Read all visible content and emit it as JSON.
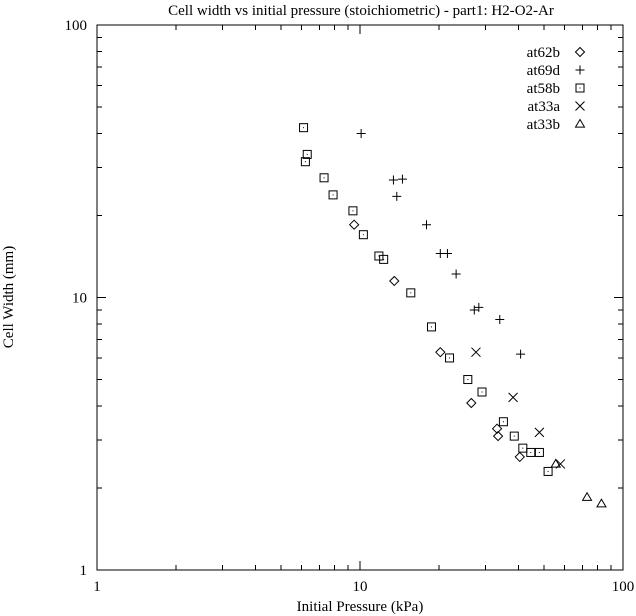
{
  "chart_data": {
    "type": "scatter",
    "title": "Cell width vs initial pressure (stoichiometric) - part1: H2-O2-Ar",
    "xlabel": "Initial Pressure (kPa)",
    "ylabel": "Cell Width (mm)",
    "xscale": "log",
    "yscale": "log",
    "xlim": [
      1,
      100
    ],
    "ylim": [
      1,
      100
    ],
    "xticks": [
      {
        "value": 1,
        "label": "1"
      },
      {
        "value": 10,
        "label": "10"
      },
      {
        "value": 100,
        "label": "100"
      }
    ],
    "yticks": [
      {
        "value": 1,
        "label": "1"
      },
      {
        "value": 10,
        "label": "10"
      },
      {
        "value": 100,
        "label": "100"
      }
    ],
    "grid": false,
    "legend_position": "top-right",
    "series": [
      {
        "name": "at62b",
        "marker": "diamond",
        "points": [
          [
            9.5,
            18.5
          ],
          [
            13.5,
            11.5
          ],
          [
            20.2,
            6.3
          ],
          [
            26.5,
            4.1
          ],
          [
            33.2,
            3.3
          ],
          [
            33.5,
            3.1
          ],
          [
            40.5,
            2.6
          ]
        ]
      },
      {
        "name": "at69d",
        "marker": "plus",
        "points": [
          [
            10.1,
            40
          ],
          [
            13.4,
            27
          ],
          [
            14.5,
            27.2
          ],
          [
            13.8,
            23.5
          ],
          [
            17.9,
            18.5
          ],
          [
            20.2,
            14.5
          ],
          [
            21.5,
            14.5
          ],
          [
            23.2,
            12.2
          ],
          [
            27.2,
            9.0
          ],
          [
            28.3,
            9.2
          ],
          [
            34.0,
            8.3
          ],
          [
            40.8,
            6.2
          ]
        ]
      },
      {
        "name": "at58b",
        "marker": "square",
        "points": [
          [
            6.1,
            42
          ],
          [
            6.3,
            33.5
          ],
          [
            6.2,
            31.5
          ],
          [
            7.3,
            27.5
          ],
          [
            7.9,
            23.8
          ],
          [
            9.4,
            20.8
          ],
          [
            10.3,
            17
          ],
          [
            11.8,
            14.2
          ],
          [
            12.3,
            13.8
          ],
          [
            15.6,
            10.4
          ],
          [
            18.7,
            7.8
          ],
          [
            21.9,
            6.0
          ],
          [
            25.7,
            5.0
          ],
          [
            29.1,
            4.5
          ],
          [
            35.1,
            3.5
          ],
          [
            38.6,
            3.1
          ],
          [
            41.6,
            2.8
          ],
          [
            44.6,
            2.7
          ],
          [
            48.1,
            2.7
          ],
          [
            51.9,
            2.3
          ]
        ]
      },
      {
        "name": "at33a",
        "marker": "cross",
        "points": [
          [
            27.6,
            6.3
          ],
          [
            38.2,
            4.3
          ],
          [
            48.1,
            3.2
          ],
          [
            57.8,
            2.45
          ]
        ]
      },
      {
        "name": "at33b",
        "marker": "triangle",
        "points": [
          [
            55.5,
            2.45
          ],
          [
            73.0,
            1.85
          ],
          [
            82.8,
            1.75
          ]
        ]
      }
    ]
  }
}
